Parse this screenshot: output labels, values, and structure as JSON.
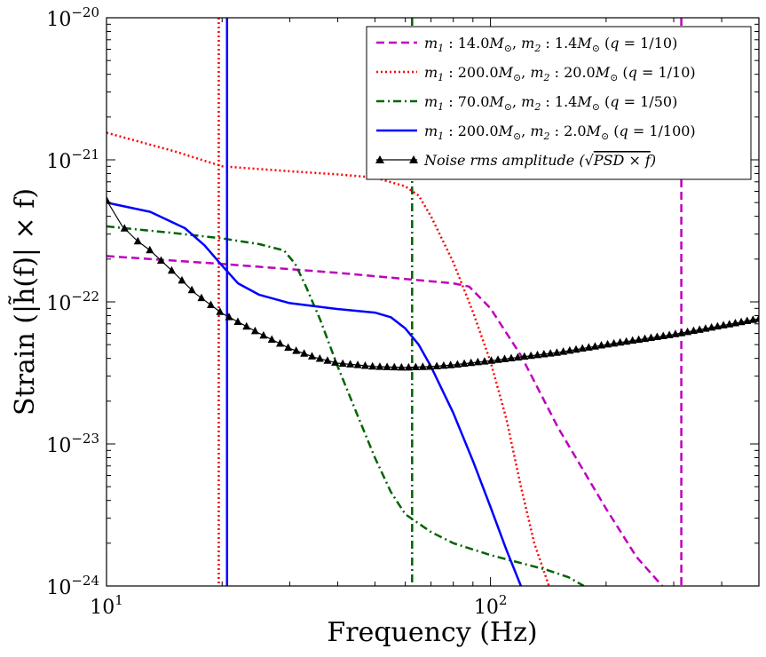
{
  "chart_data": {
    "type": "line",
    "title": "",
    "xlabel": "Frequency (Hz)",
    "ylabel": "Strain (|h̃(f)| × f)",
    "xscale": "log",
    "yscale": "log",
    "xlim": [
      10,
      500
    ],
    "ylim": [
      1e-24,
      1e-20
    ],
    "grid": false,
    "legend_position": "top-right",
    "x_ticks": [
      {
        "value": 10,
        "base": "10",
        "exp": "1"
      },
      {
        "value": 100,
        "base": "10",
        "exp": "2"
      }
    ],
    "y_ticks": [
      {
        "value": 1e-20,
        "base": "10",
        "exp": "−20"
      },
      {
        "value": 1e-21,
        "base": "10",
        "exp": "−21"
      },
      {
        "value": 1e-22,
        "base": "10",
        "exp": "−22"
      },
      {
        "value": 1e-23,
        "base": "10",
        "exp": "−23"
      },
      {
        "value": 1e-24,
        "base": "10",
        "exp": "−24"
      }
    ],
    "series": [
      {
        "name": "m1 : 14.0M⊙, m2 : 1.4M⊙ (q = 1/10)",
        "color": "#bf00bf",
        "style": "dashed",
        "vline_x": 314,
        "x": [
          10,
          20,
          40,
          60,
          80,
          88,
          100,
          120,
          150,
          200,
          240,
          280
        ],
        "y": [
          2.1e-22,
          1.85e-22,
          1.6e-22,
          1.45e-22,
          1.35e-22,
          1.28e-22,
          9e-23,
          4.2e-23,
          1.3e-23,
          3.5e-24,
          1.6e-24,
          1e-24
        ]
      },
      {
        "name": "m1 : 200.0M⊙, m2 : 20.0M⊙ (q = 1/10)",
        "color": "#ff0000",
        "style": "dotted",
        "vline_x": 19.6,
        "x": [
          10,
          15,
          20,
          30,
          40,
          50,
          60,
          65,
          70,
          80,
          90,
          100,
          110,
          120,
          130,
          142
        ],
        "y": [
          1.55e-21,
          1.15e-21,
          9e-22,
          8.3e-22,
          7.9e-22,
          7.5e-22,
          6.5e-22,
          5.6e-22,
          4e-22,
          1.9e-22,
          8.5e-23,
          3.8e-23,
          1.5e-23,
          5e-24,
          2e-24,
          1e-24
        ]
      },
      {
        "name": "m1 : 70.0M⊙, m2 : 1.4M⊙ (q = 1/50)",
        "color": "#006400",
        "style": "dashdot",
        "vline_x": 62.5,
        "x": [
          10,
          15,
          20,
          25,
          29,
          31,
          33,
          36,
          40,
          45,
          50,
          55,
          60,
          70,
          80,
          100,
          120,
          140,
          160,
          175
        ],
        "y": [
          3.4e-22,
          3.05e-22,
          2.8e-22,
          2.55e-22,
          2.3e-22,
          1.85e-22,
          1.3e-22,
          7.5e-23,
          3.5e-23,
          1.6e-23,
          8e-24,
          4.6e-24,
          3.2e-24,
          2.4e-24,
          2e-24,
          1.65e-24,
          1.45e-24,
          1.3e-24,
          1.15e-24,
          1e-24
        ]
      },
      {
        "name": "m1 : 200.0M⊙, m2 : 2.0M⊙ (q = 1/100)",
        "color": "#0000ff",
        "style": "solid",
        "vline_x": 20.6,
        "x": [
          10,
          13,
          16,
          18,
          20,
          22,
          25,
          30,
          40,
          50,
          55,
          60,
          65,
          70,
          80,
          90,
          100,
          110,
          120
        ],
        "y": [
          5e-22,
          4.3e-22,
          3.3e-22,
          2.5e-22,
          1.8e-22,
          1.35e-22,
          1.12e-22,
          9.8e-23,
          8.9e-23,
          8.4e-23,
          7.8e-23,
          6.5e-23,
          5e-23,
          3.5e-23,
          1.65e-23,
          7.6e-24,
          3.6e-24,
          1.8e-24,
          1e-24
        ]
      },
      {
        "name": "Noise rms amplitude (√PSD × f)",
        "color": "#000000",
        "style": "solid-marker",
        "marker": "triangle",
        "x": [
          10,
          11,
          12,
          13,
          15,
          17,
          20,
          25,
          30,
          35,
          40,
          50,
          60,
          70,
          80,
          100,
          150,
          200,
          300,
          400,
          500
        ],
        "y": [
          5.2e-22,
          3.4e-22,
          2.7e-22,
          2.3e-22,
          1.6e-22,
          1.15e-22,
          8.3e-23,
          6e-23,
          4.7e-23,
          4.05e-23,
          3.7e-23,
          3.5e-23,
          3.45e-23,
          3.5e-23,
          3.6e-23,
          3.85e-23,
          4.4e-23,
          5e-23,
          5.9e-23,
          6.8e-23,
          7.6e-23
        ]
      }
    ]
  },
  "legend": {
    "entries": [
      {
        "m1": "14.0",
        "m2": "1.4",
        "q": "1/10"
      },
      {
        "m1": "200.0",
        "m2": "20.0",
        "q": "1/10"
      },
      {
        "m1": "70.0",
        "m2": "1.4",
        "q": "1/50"
      },
      {
        "m1": "200.0",
        "m2": "2.0",
        "q": "1/100"
      }
    ],
    "m1_label": "m",
    "sub1": "1",
    "sub2": "2",
    "colon": " :",
    "msun": "M",
    "odot": "⊙",
    "q_label": "q",
    "noise_text": "Noise rms amplitude",
    "noise_formula": "PSD × f"
  }
}
